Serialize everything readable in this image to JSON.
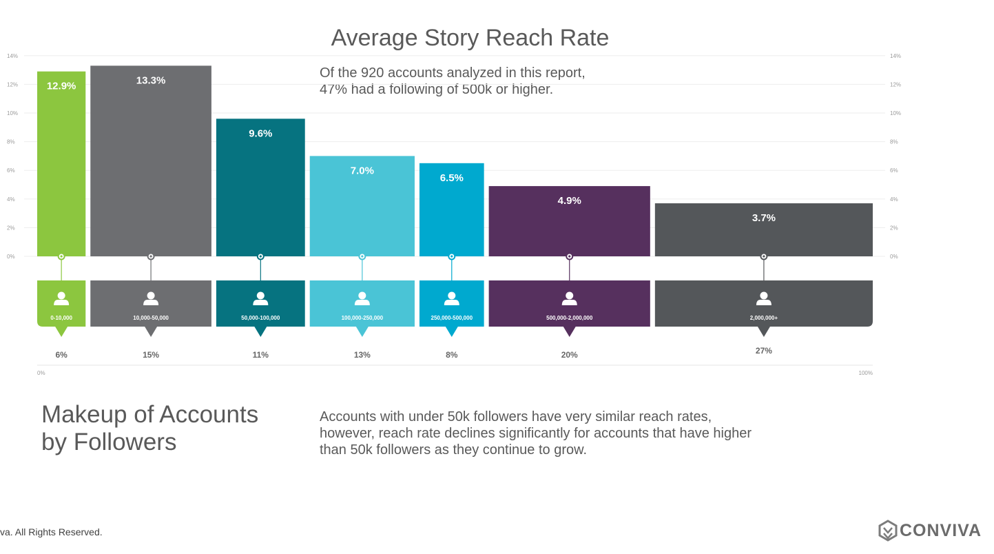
{
  "title": "Average Story Reach Rate",
  "intro_note": "Of the 920 accounts analyzed in this report,\n47% had a following of 500k or higher.",
  "makeup_title": "Makeup of Accounts\nby Followers",
  "reach_note": "Accounts with under 50k followers have very similar reach rates,\nhowever, reach rate declines significantly for accounts that have higher\nthan 50k followers as they continue to grow.",
  "footer": "va. All Rights Reserved.",
  "brand": {
    "name": "CONVIVA",
    "icon": "conviva-logo-icon"
  },
  "chart_data": {
    "type": "bar",
    "title": "Average Story Reach Rate",
    "categories": [
      "0-10,000",
      "10,000-50,000",
      "50,000-100,000",
      "100,000-250,000",
      "250,000-500,000",
      "500,000-2,000,000",
      "2,000,000+"
    ],
    "reach_rate": [
      12.9,
      13.3,
      9.6,
      7.0,
      6.5,
      4.9,
      3.7
    ],
    "reach_rate_labels": [
      "12.9%",
      "13.3%",
      "9.6%",
      "7.0%",
      "6.5%",
      "4.9%",
      "3.7%"
    ],
    "share_of_accounts": [
      6,
      15,
      11,
      13,
      8,
      20,
      27
    ],
    "share_labels": [
      "6%",
      "15%",
      "11%",
      "13%",
      "8%",
      "20%",
      "27%"
    ],
    "colors": [
      "#8cc63f",
      "#6d6e71",
      "#067380",
      "#4ac4d6",
      "#00a9cf",
      "#56305e",
      "#54575a"
    ],
    "ylim": [
      0,
      14
    ],
    "y_ticks": [
      0,
      2,
      4,
      6,
      8,
      10,
      12,
      14
    ],
    "y_tick_labels": [
      "0%",
      "2%",
      "4%",
      "6%",
      "8%",
      "10%",
      "12%",
      "14%"
    ],
    "x_axis_labels": [
      "0%",
      "100%"
    ],
    "bar_width": "proportional to share of accounts",
    "grid": true,
    "category_icon": "user-icon"
  }
}
